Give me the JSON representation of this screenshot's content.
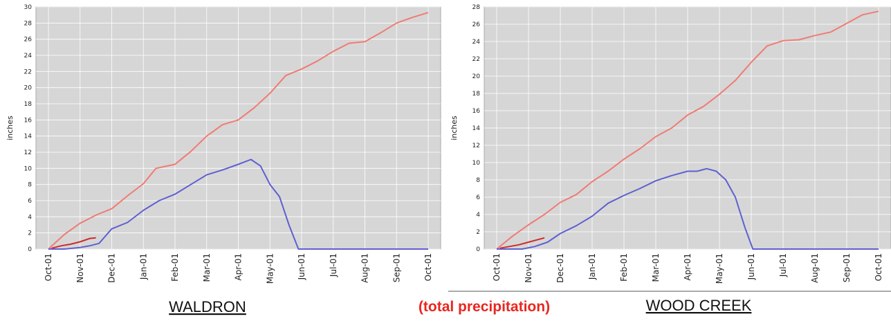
{
  "caption": {
    "text": "(total precipitation)",
    "color": "#e8261f"
  },
  "colors": {
    "plot_bg": "#d6d6d6",
    "grid": "#ffffff",
    "precip": "#f07b73",
    "swe": "#5f5fd3",
    "current": "#cc2a2a"
  },
  "chart_data": [
    {
      "type": "line",
      "title": "WALDRON",
      "ylabel": "inches",
      "ylim": [
        0,
        30
      ],
      "yticks": [
        0,
        2,
        4,
        6,
        8,
        10,
        12,
        14,
        16,
        18,
        20,
        22,
        24,
        26,
        28,
        30
      ],
      "categories": [
        "Oct-01",
        "Nov-01",
        "Dec-01",
        "Jan-01",
        "Feb-01",
        "Mar-01",
        "Apr-01",
        "May-01",
        "Jun-01",
        "Jul-01",
        "Aug-01",
        "Sep-01",
        "Oct-01"
      ],
      "grid": true,
      "series": [
        {
          "key": "precip",
          "points": [
            [
              0,
              0
            ],
            [
              0.5,
              1.8
            ],
            [
              1,
              3.2
            ],
            [
              1.5,
              4.2
            ],
            [
              2,
              5
            ],
            [
              2.5,
              6.6
            ],
            [
              3,
              8.1
            ],
            [
              3.4,
              10
            ],
            [
              4,
              10.5
            ],
            [
              4.5,
              12.1
            ],
            [
              5,
              14
            ],
            [
              5.5,
              15.4
            ],
            [
              6,
              16
            ],
            [
              6.5,
              17.5
            ],
            [
              7,
              19.3
            ],
            [
              7.5,
              21.5
            ],
            [
              8,
              22.3
            ],
            [
              8.5,
              23.3
            ],
            [
              9,
              24.5
            ],
            [
              9.5,
              25.5
            ],
            [
              10,
              25.7
            ],
            [
              10.5,
              26.8
            ],
            [
              11,
              28
            ],
            [
              11.5,
              28.7
            ],
            [
              12,
              29.3
            ]
          ]
        },
        {
          "key": "swe",
          "points": [
            [
              0,
              0
            ],
            [
              0.5,
              0
            ],
            [
              1,
              0.2
            ],
            [
              1.3,
              0.4
            ],
            [
              1.6,
              0.7
            ],
            [
              2,
              2.5
            ],
            [
              2.5,
              3.3
            ],
            [
              3,
              4.8
            ],
            [
              3.5,
              6
            ],
            [
              4,
              6.8
            ],
            [
              4.5,
              8
            ],
            [
              5,
              9.2
            ],
            [
              5.5,
              9.8
            ],
            [
              6,
              10.5
            ],
            [
              6.4,
              11.1
            ],
            [
              6.7,
              10.3
            ],
            [
              7,
              8
            ],
            [
              7.3,
              6.5
            ],
            [
              7.6,
              3
            ],
            [
              7.9,
              0
            ],
            [
              12,
              0
            ]
          ]
        },
        {
          "key": "current",
          "points": [
            [
              0.1,
              0.1
            ],
            [
              0.4,
              0.4
            ],
            [
              0.7,
              0.6
            ],
            [
              1,
              0.9
            ],
            [
              1.3,
              1.3
            ],
            [
              1.5,
              1.4
            ]
          ]
        }
      ]
    },
    {
      "type": "line",
      "title": "WOOD CREEK",
      "ylabel": "inches",
      "ylim": [
        0,
        28
      ],
      "yticks": [
        0,
        2,
        4,
        6,
        8,
        10,
        12,
        14,
        16,
        18,
        20,
        22,
        24,
        26,
        28
      ],
      "categories": [
        "Oct-01",
        "Nov-01",
        "Dec-01",
        "Jan-01",
        "Feb-01",
        "Mar-01",
        "Apr-01",
        "May-01",
        "Jun-01",
        "Jul-01",
        "Aug-01",
        "Sep-01",
        "Oct-01"
      ],
      "grid": true,
      "series": [
        {
          "key": "precip",
          "points": [
            [
              0,
              0
            ],
            [
              0.5,
              1.5
            ],
            [
              1,
              2.8
            ],
            [
              1.5,
              4
            ],
            [
              2,
              5.4
            ],
            [
              2.5,
              6.3
            ],
            [
              3,
              7.8
            ],
            [
              3.5,
              9
            ],
            [
              4,
              10.4
            ],
            [
              4.5,
              11.6
            ],
            [
              5,
              13
            ],
            [
              5.5,
              14
            ],
            [
              6,
              15.5
            ],
            [
              6.5,
              16.5
            ],
            [
              7,
              17.9
            ],
            [
              7.5,
              19.5
            ],
            [
              8,
              21.6
            ],
            [
              8.5,
              23.5
            ],
            [
              9,
              24.1
            ],
            [
              9.5,
              24.2
            ],
            [
              10,
              24.7
            ],
            [
              10.5,
              25.1
            ],
            [
              11,
              26.1
            ],
            [
              11.5,
              27.1
            ],
            [
              12,
              27.5
            ]
          ]
        },
        {
          "key": "swe",
          "points": [
            [
              0,
              0
            ],
            [
              0.8,
              0
            ],
            [
              1.2,
              0.3
            ],
            [
              1.6,
              0.8
            ],
            [
              2,
              1.8
            ],
            [
              2.5,
              2.7
            ],
            [
              3,
              3.8
            ],
            [
              3.5,
              5.3
            ],
            [
              4,
              6.2
            ],
            [
              4.5,
              7
            ],
            [
              5,
              7.9
            ],
            [
              5.5,
              8.5
            ],
            [
              6,
              9
            ],
            [
              6.3,
              9
            ],
            [
              6.6,
              9.3
            ],
            [
              6.9,
              9
            ],
            [
              7.2,
              8
            ],
            [
              7.5,
              6
            ],
            [
              7.8,
              2.5
            ],
            [
              8.05,
              0
            ],
            [
              12,
              0
            ]
          ]
        },
        {
          "key": "current",
          "points": [
            [
              0.1,
              0.1
            ],
            [
              0.4,
              0.3
            ],
            [
              0.7,
              0.5
            ],
            [
              1,
              0.8
            ],
            [
              1.3,
              1.1
            ],
            [
              1.5,
              1.3
            ]
          ]
        }
      ]
    }
  ]
}
